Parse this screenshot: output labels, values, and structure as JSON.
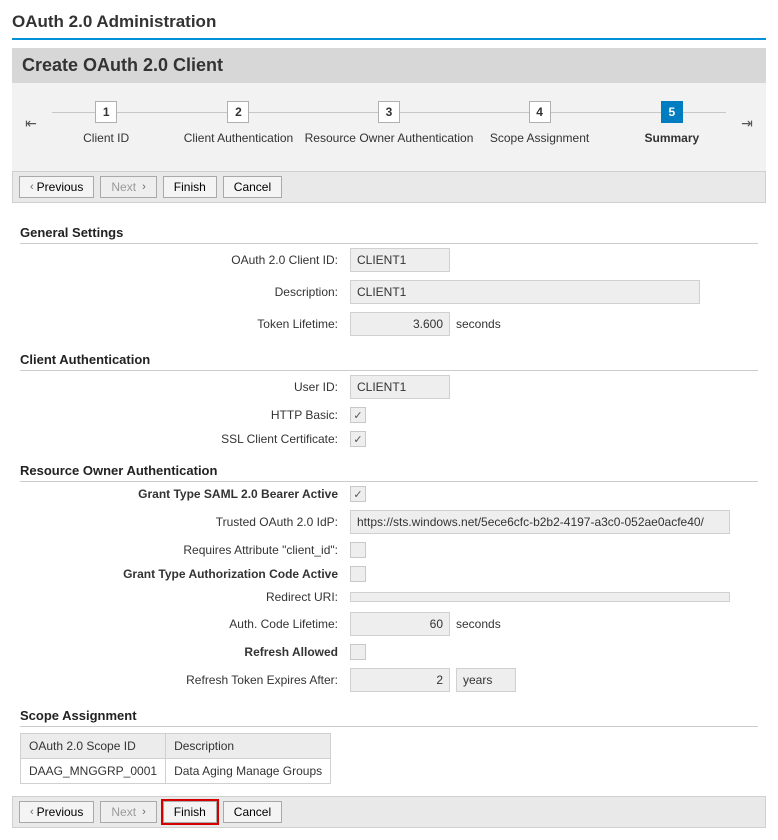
{
  "page_title": "OAuth 2.0 Administration",
  "panel_title": "Create OAuth 2.0 Client",
  "colors": {
    "accent": "#007cc0",
    "underline": "#0091d9",
    "highlight_outline": "#d40000",
    "wizard_bg": "#f2f2f2",
    "toolbar_bg": "#e9e9e9",
    "readonly_bg": "#eeeeee"
  },
  "wizard": {
    "steps": [
      {
        "num": "1",
        "label": "Client ID",
        "active": false
      },
      {
        "num": "2",
        "label": "Client Authentication",
        "active": false
      },
      {
        "num": "3",
        "label": "Resource Owner Authentication",
        "active": false
      },
      {
        "num": "4",
        "label": "Scope Assignment",
        "active": false
      },
      {
        "num": "5",
        "label": "Summary",
        "active": true
      }
    ]
  },
  "toolbar": {
    "previous": "Previous",
    "next": "Next",
    "finish": "Finish",
    "cancel": "Cancel"
  },
  "sections": {
    "general": {
      "title": "General Settings",
      "client_id_label": "OAuth 2.0 Client ID:",
      "client_id": "CLIENT1",
      "description_label": "Description:",
      "description": "CLIENT1",
      "token_lifetime_label": "Token Lifetime:",
      "token_lifetime": "3.600",
      "token_lifetime_unit": "seconds"
    },
    "client_auth": {
      "title": "Client Authentication",
      "user_id_label": "User ID:",
      "user_id": "CLIENT1",
      "http_basic_label": "HTTP Basic:",
      "http_basic_checked": true,
      "ssl_label": "SSL Client Certificate:",
      "ssl_checked": true
    },
    "resource_owner": {
      "title": "Resource Owner Authentication",
      "saml_label": "Grant Type SAML 2.0 Bearer Active",
      "saml_checked": true,
      "trusted_idp_label": "Trusted OAuth 2.0 IdP:",
      "trusted_idp": "https://sts.windows.net/5ece6cfc-b2b2-4197-a3c0-052ae0acfe40/",
      "requires_client_id_label": "Requires Attribute \"client_id\":",
      "requires_client_id_checked": false,
      "auth_code_label": "Grant Type Authorization Code Active",
      "auth_code_checked": false,
      "redirect_uri_label": "Redirect URI:",
      "redirect_uri": "",
      "auth_code_lifetime_label": "Auth. Code Lifetime:",
      "auth_code_lifetime": "60",
      "auth_code_lifetime_unit": "seconds",
      "refresh_allowed_label": "Refresh Allowed",
      "refresh_allowed_checked": false,
      "refresh_expires_label": "Refresh Token Expires After:",
      "refresh_expires": "2",
      "refresh_expires_unit": "years"
    },
    "scope": {
      "title": "Scope Assignment",
      "columns": [
        "OAuth 2.0 Scope ID",
        "Description"
      ],
      "rows": [
        [
          "DAAG_MNGGRP_0001",
          "Data Aging Manage Groups"
        ]
      ]
    }
  }
}
